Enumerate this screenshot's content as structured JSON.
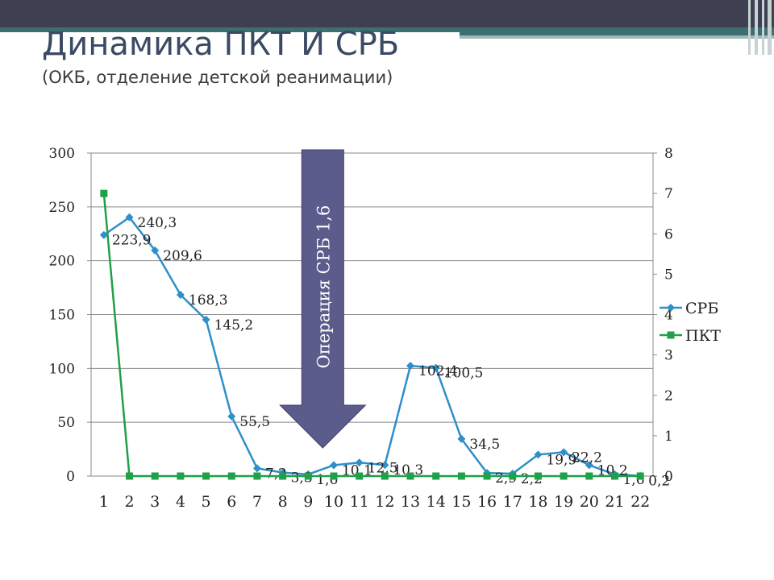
{
  "slide": {
    "title": "Динамика  ПКТ И СРБ",
    "subtitle": "(ОКБ, отделение детской реанимации)"
  },
  "chart_data": {
    "type": "line",
    "categories": [
      "1",
      "2",
      "3",
      "4",
      "5",
      "6",
      "7",
      "8",
      "9",
      "10",
      "11",
      "12",
      "13",
      "14",
      "15",
      "16",
      "17",
      "18",
      "19",
      "20",
      "21",
      "22"
    ],
    "series": [
      {
        "name": "СРБ",
        "axis": "left",
        "color": "#2e8fc9",
        "marker": "diamond",
        "values": [
          223.9,
          240.3,
          209.6,
          168.3,
          145.2,
          55.5,
          7.2,
          3.3,
          1.6,
          10.1,
          12.5,
          10.3,
          102.4,
          100.5,
          34.5,
          2.9,
          2.2,
          19.9,
          22.2,
          10.2,
          1.6,
          0.2
        ],
        "labels": [
          "223,9",
          "240,3",
          "209,6",
          "168,3",
          "145,2",
          "55,5",
          "7,2",
          "3,3",
          "1,6",
          "10,1",
          "12,5",
          "10,3",
          "102,4",
          "100,5",
          "34,5",
          "2,9",
          "2,2",
          "19,9",
          "22,2",
          "10,2",
          "1,6",
          "0,2"
        ]
      },
      {
        "name": "ПКТ",
        "axis": "right",
        "color": "#1fa049",
        "marker": "square",
        "values": [
          7,
          0,
          0,
          0,
          0,
          0,
          0,
          0,
          0,
          0,
          0,
          0,
          0,
          0,
          0,
          0,
          0,
          0,
          0,
          0,
          0,
          0
        ]
      }
    ],
    "y_left": {
      "range": [
        0,
        300
      ],
      "ticks": [
        "0",
        "50",
        "100",
        "150",
        "200",
        "250",
        "300"
      ]
    },
    "y_right": {
      "range": [
        0,
        8
      ],
      "ticks": [
        "0",
        "1",
        "2",
        "3",
        "4",
        "5",
        "6",
        "7",
        "8"
      ]
    },
    "grid": true,
    "legend": "right",
    "annotation": {
      "text": "Операция СРБ 1,6",
      "at_category": "9",
      "color": "#5b5b8c"
    }
  }
}
